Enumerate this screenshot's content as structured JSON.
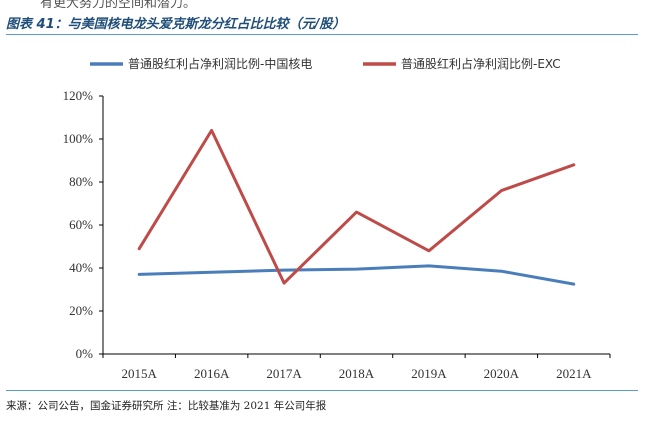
{
  "header_fragment": "有更大努力的空间和潜力。",
  "figure_title": "图表 41：与美国核电龙头爱克斯龙分红占比比较（元/股）",
  "source_note": "来源：公司公告，国金证券研究所 注：比较基准为 2021 年公司年报",
  "chart_data": {
    "type": "line",
    "categories": [
      "2015A",
      "2016A",
      "2017A",
      "2018A",
      "2019A",
      "2020A",
      "2021A"
    ],
    "series": [
      {
        "name": "普通股红利占净利润比例-中国核电",
        "color": "#4a7ebb",
        "values": [
          37,
          38,
          39,
          39.5,
          41,
          38.5,
          32.5
        ]
      },
      {
        "name": "普通股红利占净利润比例-EXC",
        "color": "#be4b48",
        "values": [
          49,
          104,
          33,
          66,
          48,
          76,
          88
        ]
      }
    ],
    "y_ticks": [
      "0%",
      "20%",
      "40%",
      "60%",
      "80%",
      "100%",
      "120%"
    ],
    "ylim": [
      0,
      120
    ],
    "legend_position": "top",
    "grid": false
  }
}
